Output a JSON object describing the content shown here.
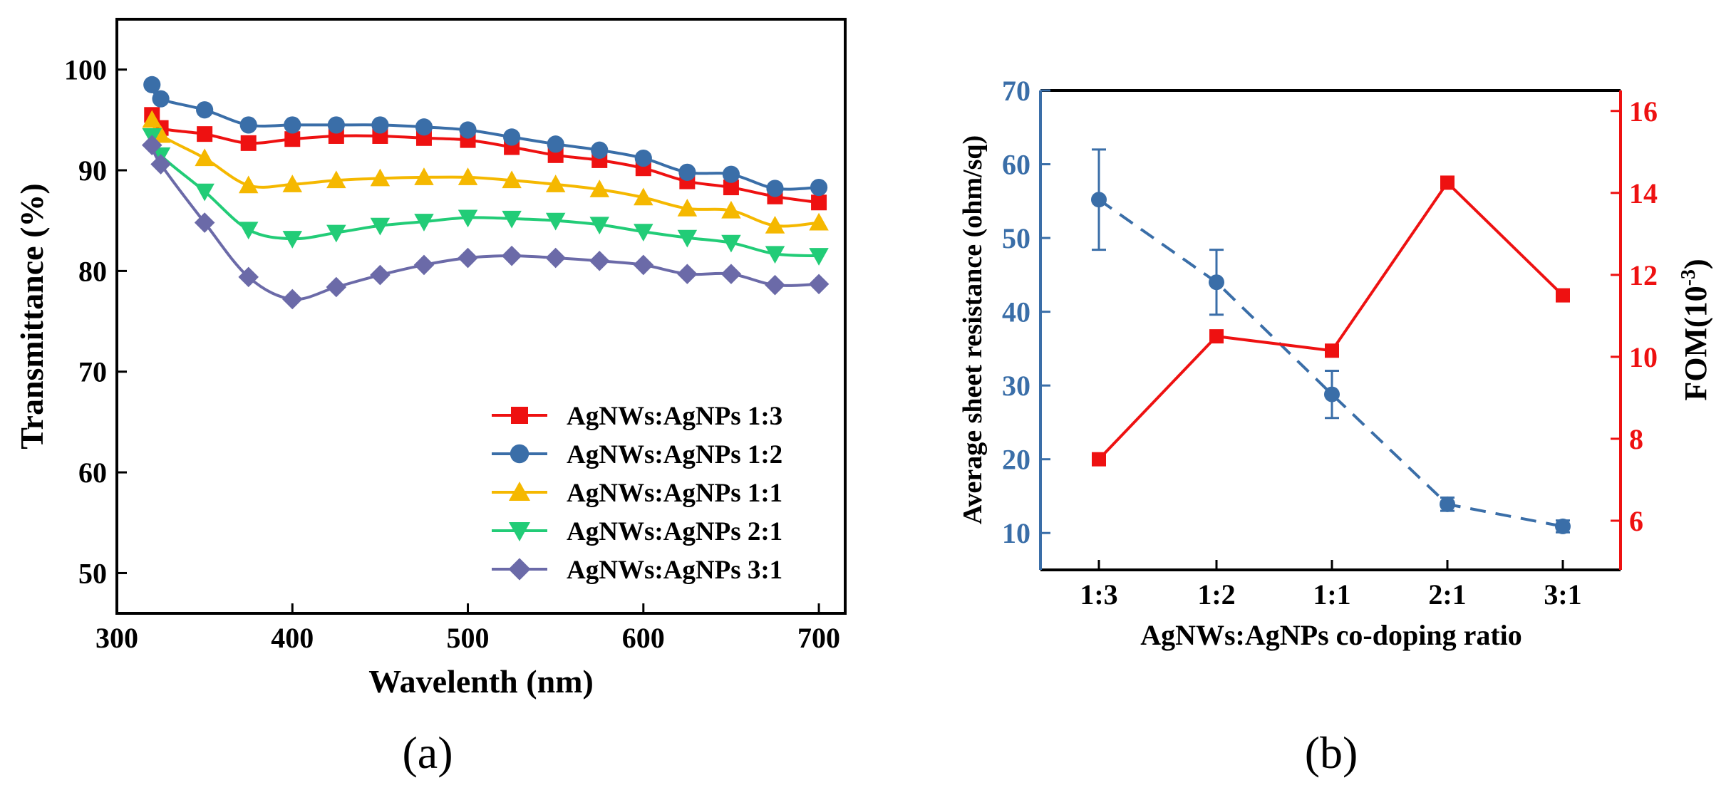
{
  "chart_data": [
    {
      "panel_label": "(a)",
      "type": "line",
      "xlabel": "Wavelenth (nm)",
      "ylabel": "Transmittance (%)",
      "xlim": [
        300,
        715
      ],
      "ylim": [
        46,
        105
      ],
      "xticks": [
        300,
        400,
        500,
        600,
        700
      ],
      "yticks": [
        50,
        60,
        70,
        80,
        90,
        100
      ],
      "legend_position": "bottom-right",
      "x": [
        320,
        325,
        350,
        375,
        400,
        425,
        450,
        475,
        500,
        525,
        550,
        575,
        600,
        625,
        650,
        675,
        700
      ],
      "series": [
        {
          "name": "AgNWs:AgNPs 1:3",
          "color": "#ee1111",
          "marker": "square",
          "values": [
            95.5,
            94.2,
            93.6,
            92.7,
            93.1,
            93.4,
            93.4,
            93.2,
            93.0,
            92.3,
            91.5,
            91.0,
            90.2,
            88.9,
            88.3,
            87.4,
            86.8
          ]
        },
        {
          "name": "AgNWs:AgNPs 1:2",
          "color": "#3a6ea8",
          "marker": "circle",
          "values": [
            98.5,
            97.1,
            96.0,
            94.5,
            94.5,
            94.5,
            94.5,
            94.3,
            94.0,
            93.3,
            92.6,
            92.0,
            91.2,
            89.8,
            89.6,
            88.2,
            88.3
          ]
        },
        {
          "name": "AgNWs:AgNPs 1:1",
          "color": "#f5b800",
          "marker": "triangle-up",
          "values": [
            95.0,
            93.5,
            91.2,
            88.5,
            88.6,
            89.0,
            89.2,
            89.3,
            89.3,
            89.0,
            88.6,
            88.1,
            87.3,
            86.2,
            86.0,
            84.5,
            84.8
          ]
        },
        {
          "name": "AgNWs:AgNPs 2:1",
          "color": "#22cc77",
          "marker": "triangle-down",
          "values": [
            93.4,
            91.5,
            87.9,
            84.1,
            83.2,
            83.8,
            84.5,
            84.9,
            85.3,
            85.2,
            85.0,
            84.6,
            83.9,
            83.3,
            82.8,
            81.7,
            81.5
          ]
        },
        {
          "name": "AgNWs:AgNPs 3:1",
          "color": "#6b6aa8",
          "marker": "diamond",
          "values": [
            92.5,
            90.6,
            84.8,
            79.4,
            77.2,
            78.4,
            79.6,
            80.6,
            81.3,
            81.5,
            81.3,
            81.0,
            80.6,
            79.7,
            79.7,
            78.6,
            78.7
          ]
        }
      ]
    },
    {
      "panel_label": "(b)",
      "type": "line",
      "xlabel": "AgNWs:AgNPs co-doping ratio",
      "ylabel_left": "Average sheet resistance (ohm/sq)",
      "ylabel_right_base": "FOM(10",
      "ylabel_right_sup": "-3",
      "ylabel_right_close": ")",
      "categories": [
        "1:3",
        "1:2",
        "1:1",
        "2:1",
        "3:1"
      ],
      "ylim_left": [
        5,
        70
      ],
      "ylim_right": [
        4.8,
        16.5
      ],
      "yticks_left": [
        10,
        20,
        30,
        40,
        50,
        60,
        70
      ],
      "yticks_right": [
        6,
        8,
        10,
        12,
        14,
        16
      ],
      "left_color": "#3a6ea8",
      "right_color": "#ee1111",
      "series": [
        {
          "name": "Average sheet resistance",
          "axis": "left",
          "style": "dashed",
          "marker": "circle",
          "values": [
            55.2,
            44.0,
            28.8,
            13.9,
            10.9
          ],
          "error": [
            6.8,
            4.4,
            3.2,
            0.9,
            0.8
          ]
        },
        {
          "name": "FOM",
          "axis": "right",
          "style": "solid",
          "marker": "square",
          "values": [
            7.5,
            10.5,
            10.15,
            14.25,
            11.5
          ]
        }
      ]
    }
  ]
}
